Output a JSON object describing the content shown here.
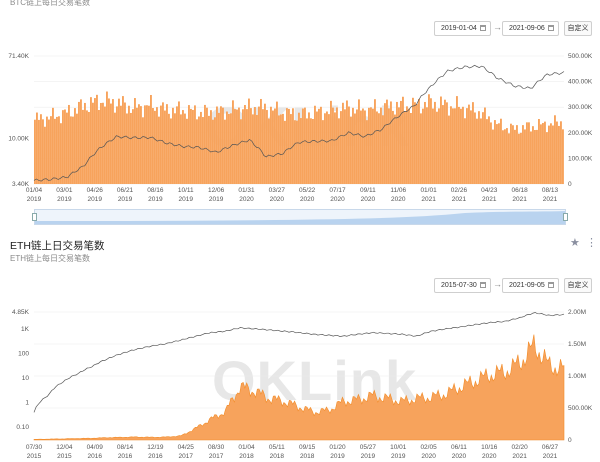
{
  "btc": {
    "subtitle": "BTC链上每日交易笔数",
    "range_start": "2019-01-04",
    "range_end": "2021-09-06",
    "custom_label": "自定义",
    "watermark": "OKLink"
  },
  "eth": {
    "title": "ETH链上日交易笔数",
    "subtitle": "ETH链上每日交易笔数",
    "range_start": "2015-07-30",
    "range_end": "2021-09-05",
    "custom_label": "自定义",
    "watermark": "OKLink"
  },
  "icons": {
    "favorite": "star-icon",
    "more": "more-vertical-icon",
    "calendar": "calendar-icon",
    "range_arrow": "arrow-right-icon"
  },
  "colors": {
    "bar_fill": "#f7a35c",
    "bar_edge": "#f28c28",
    "price_line": "#555555",
    "navigator": "#b9d3ef"
  },
  "chart_data": [
    {
      "type": "bar",
      "secondary_type": "line",
      "left_axis_ticks": [
        "71.40K",
        "10.00K",
        "3.40K"
      ],
      "right_axis_ticks": [
        "500.00K",
        "400.00K",
        "300.00K",
        "200.00K",
        "100.00K",
        "0"
      ],
      "x_ticks": [
        [
          "01/04",
          "2019"
        ],
        [
          "03/01",
          "2019"
        ],
        [
          "04/26",
          "2019"
        ],
        [
          "06/21",
          "2019"
        ],
        [
          "08/16",
          "2019"
        ],
        [
          "10/11",
          "2019"
        ],
        [
          "12/06",
          "2019"
        ],
        [
          "01/31",
          "2020"
        ],
        [
          "03/27",
          "2020"
        ],
        [
          "05/22",
          "2020"
        ],
        [
          "07/17",
          "2020"
        ],
        [
          "09/11",
          "2020"
        ],
        [
          "11/06",
          "2020"
        ],
        [
          "01/01",
          "2021"
        ],
        [
          "02/26",
          "2021"
        ],
        [
          "04/23",
          "2021"
        ],
        [
          "06/18",
          "2021"
        ],
        [
          "08/13",
          "2021"
        ]
      ],
      "x": [
        "2019-01",
        "2019-02",
        "2019-03",
        "2019-04",
        "2019-05",
        "2019-06",
        "2019-07",
        "2019-08",
        "2019-09",
        "2019-10",
        "2019-11",
        "2019-12",
        "2020-01",
        "2020-02",
        "2020-03",
        "2020-04",
        "2020-05",
        "2020-06",
        "2020-07",
        "2020-08",
        "2020-09",
        "2020-10",
        "2020-11",
        "2020-12",
        "2021-01",
        "2021-02",
        "2021-03",
        "2021-04",
        "2021-05",
        "2021-06",
        "2021-07",
        "2021-08",
        "2021-09"
      ],
      "series": [
        {
          "axis": "right",
          "values": [
            270000,
            280000,
            300000,
            330000,
            350000,
            340000,
            320000,
            330000,
            310000,
            310000,
            300000,
            300000,
            310000,
            320000,
            320000,
            300000,
            290000,
            300000,
            310000,
            320000,
            310000,
            320000,
            330000,
            330000,
            340000,
            330000,
            320000,
            300000,
            250000,
            230000,
            240000,
            250000,
            260000
          ]
        },
        {
          "axis": "left",
          "values": [
            3700,
            3800,
            4000,
            5200,
            8000,
            10500,
            10200,
            10300,
            9000,
            8300,
            8100,
            7200,
            8500,
            9700,
            6500,
            7000,
            9200,
            9400,
            9500,
            11500,
            10500,
            12500,
            17000,
            22000,
            35000,
            50000,
            55000,
            56000,
            42000,
            35000,
            33000,
            46000,
            48000
          ]
        }
      ],
      "left_scale": "log",
      "ylim_left": [
        3400,
        71400
      ],
      "ylim_right": [
        0,
        500000
      ]
    },
    {
      "type": "area",
      "secondary_type": "line",
      "left_axis_ticks": [
        "4.85K",
        "1K",
        "100",
        "10",
        "1",
        "0.10"
      ],
      "right_axis_ticks": [
        "2.00M",
        "1.50M",
        "1.00M",
        "500.00K",
        "0"
      ],
      "x_ticks": [
        [
          "07/30",
          "2015"
        ],
        [
          "12/04",
          "2015"
        ],
        [
          "04/09",
          "2016"
        ],
        [
          "08/14",
          "2016"
        ],
        [
          "12/19",
          "2016"
        ],
        [
          "04/25",
          "2017"
        ],
        [
          "08/30",
          "2017"
        ],
        [
          "01/04",
          "2018"
        ],
        [
          "05/11",
          "2018"
        ],
        [
          "09/15",
          "2018"
        ],
        [
          "01/20",
          "2019"
        ],
        [
          "05/27",
          "2019"
        ],
        [
          "10/01",
          "2019"
        ],
        [
          "02/05",
          "2020"
        ],
        [
          "06/11",
          "2020"
        ],
        [
          "10/16",
          "2020"
        ],
        [
          "02/20",
          "2021"
        ],
        [
          "06/27",
          "2021"
        ]
      ],
      "x": [
        "2015-08",
        "2015-10",
        "2015-12",
        "2016-02",
        "2016-04",
        "2016-06",
        "2016-08",
        "2016-10",
        "2016-12",
        "2017-02",
        "2017-04",
        "2017-06",
        "2017-08",
        "2017-10",
        "2017-12",
        "2018-02",
        "2018-04",
        "2018-06",
        "2018-08",
        "2018-10",
        "2018-12",
        "2019-02",
        "2019-04",
        "2019-06",
        "2019-08",
        "2019-10",
        "2019-12",
        "2020-02",
        "2020-04",
        "2020-06",
        "2020-08",
        "2020-10",
        "2020-12",
        "2021-02",
        "2021-04",
        "2021-06",
        "2021-08"
      ],
      "series": [
        {
          "axis": "right",
          "values": [
            10000,
            15000,
            20000,
            25000,
            30000,
            40000,
            45000,
            50000,
            45000,
            50000,
            70000,
            200000,
            350000,
            480000,
            900000,
            820000,
            700000,
            650000,
            560000,
            470000,
            500000,
            650000,
            680000,
            750000,
            700000,
            650000,
            700000,
            720000,
            780000,
            900000,
            1000000,
            1100000,
            1150000,
            1300000,
            1600000,
            1250000,
            1200000
          ]
        },
        {
          "axis": "left",
          "values": [
            0.4,
            2,
            7,
            15,
            30,
            60,
            100,
            150,
            200,
            250,
            350,
            500,
            700,
            800,
            1100,
            1000,
            900,
            800,
            700,
            600,
            550,
            500,
            600,
            700,
            650,
            600,
            500,
            800,
            1000,
            1200,
            1500,
            1800,
            2000,
            2800,
            4500,
            3500,
            3800
          ]
        }
      ],
      "left_scale": "log",
      "ylim_left": [
        0.03,
        4850
      ],
      "ylim_right": [
        0,
        2000000
      ]
    }
  ]
}
